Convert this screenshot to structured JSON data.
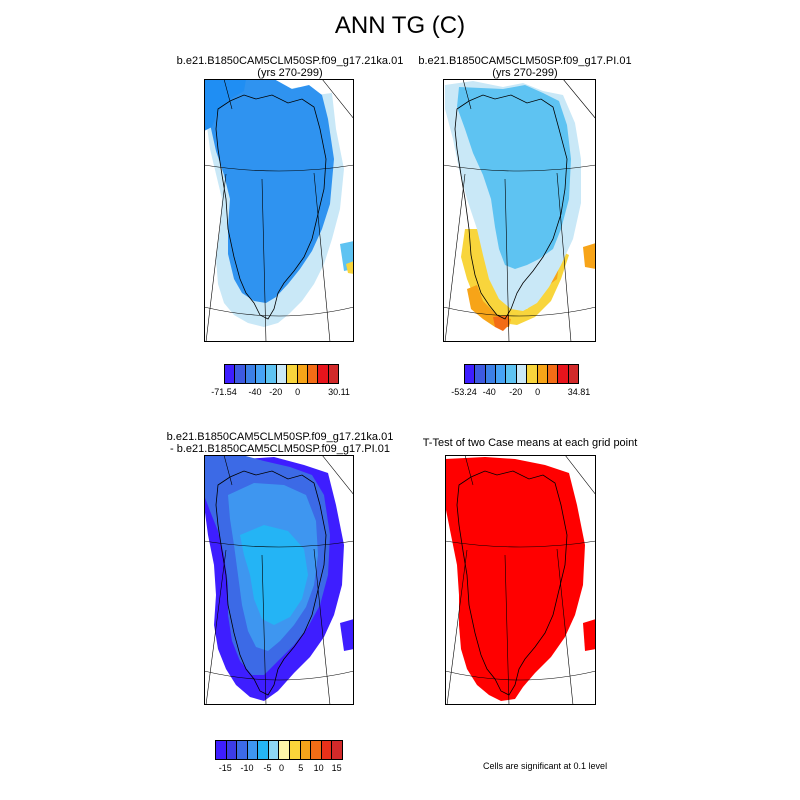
{
  "figure": {
    "title": "ANN TG (C)",
    "panels": [
      {
        "id": "case1",
        "title1": "b.e21.B1850CAM5CLM50SP.f09_g17.21ka.01",
        "title2": "(yrs 270-299)"
      },
      {
        "id": "case2",
        "title1": "b.e21.B1850CAM5CLM50SP.f09_g17.PI.01",
        "title2": "(yrs 270-299)"
      },
      {
        "id": "diff",
        "title1": "b.e21.B1850CAM5CLM50SP.f09_g17.21ka.01",
        "title2": "- b.e21.B1850CAM5CLM50SP.f09_g17.PI.01"
      },
      {
        "id": "ttest",
        "title1": "T-Test of two Case means at each grid point",
        "title2": ""
      }
    ],
    "colorbars": {
      "case1": {
        "colors": [
          "#3e1eff",
          "#3d5ae0",
          "#3c80e6",
          "#47a3f5",
          "#5ec3f2",
          "#c9e8f7",
          "#f8d53c",
          "#f7a418",
          "#f36c16",
          "#e8141c",
          "#d22a2a"
        ],
        "labels": [
          "-71.54",
          "-40",
          "-20",
          "0",
          "30.11"
        ]
      },
      "case2": {
        "colors": [
          "#3e1eff",
          "#3d5ae0",
          "#3c80e6",
          "#47a3f5",
          "#5ec3f2",
          "#c9e8f7",
          "#f8d53c",
          "#f7a418",
          "#f36c16",
          "#e8141c",
          "#d22a2a"
        ],
        "labels": [
          "-53.24",
          "-40",
          "-20",
          "0",
          "34.81"
        ]
      },
      "diff": {
        "colors": [
          "#3e1eff",
          "#3c3ce8",
          "#3c6ae6",
          "#3e96f0",
          "#24b4f5",
          "#8fd8f5",
          "#fff7a8",
          "#fbd53a",
          "#f6a41a",
          "#f36c16",
          "#e9311a",
          "#d22a2a"
        ],
        "labels": [
          "-15",
          "-10",
          "-5",
          "0",
          "5",
          "10",
          "15"
        ]
      }
    },
    "significance_note": "Cells are significant at 0.1 level",
    "palette": {
      "outer_blue": "#1f8ef3",
      "blue": "#2f93f0",
      "light_blue": "#5ec3f2",
      "pale_blue": "#c9e8f7",
      "yellow": "#f8d53c",
      "orange": "#f7a418",
      "dark_orange": "#f36c16",
      "blue_dark": "#3e1eff",
      "blue_mid": "#3c6ae6",
      "cyan": "#24b4f5",
      "red": "#ff0000"
    }
  }
}
